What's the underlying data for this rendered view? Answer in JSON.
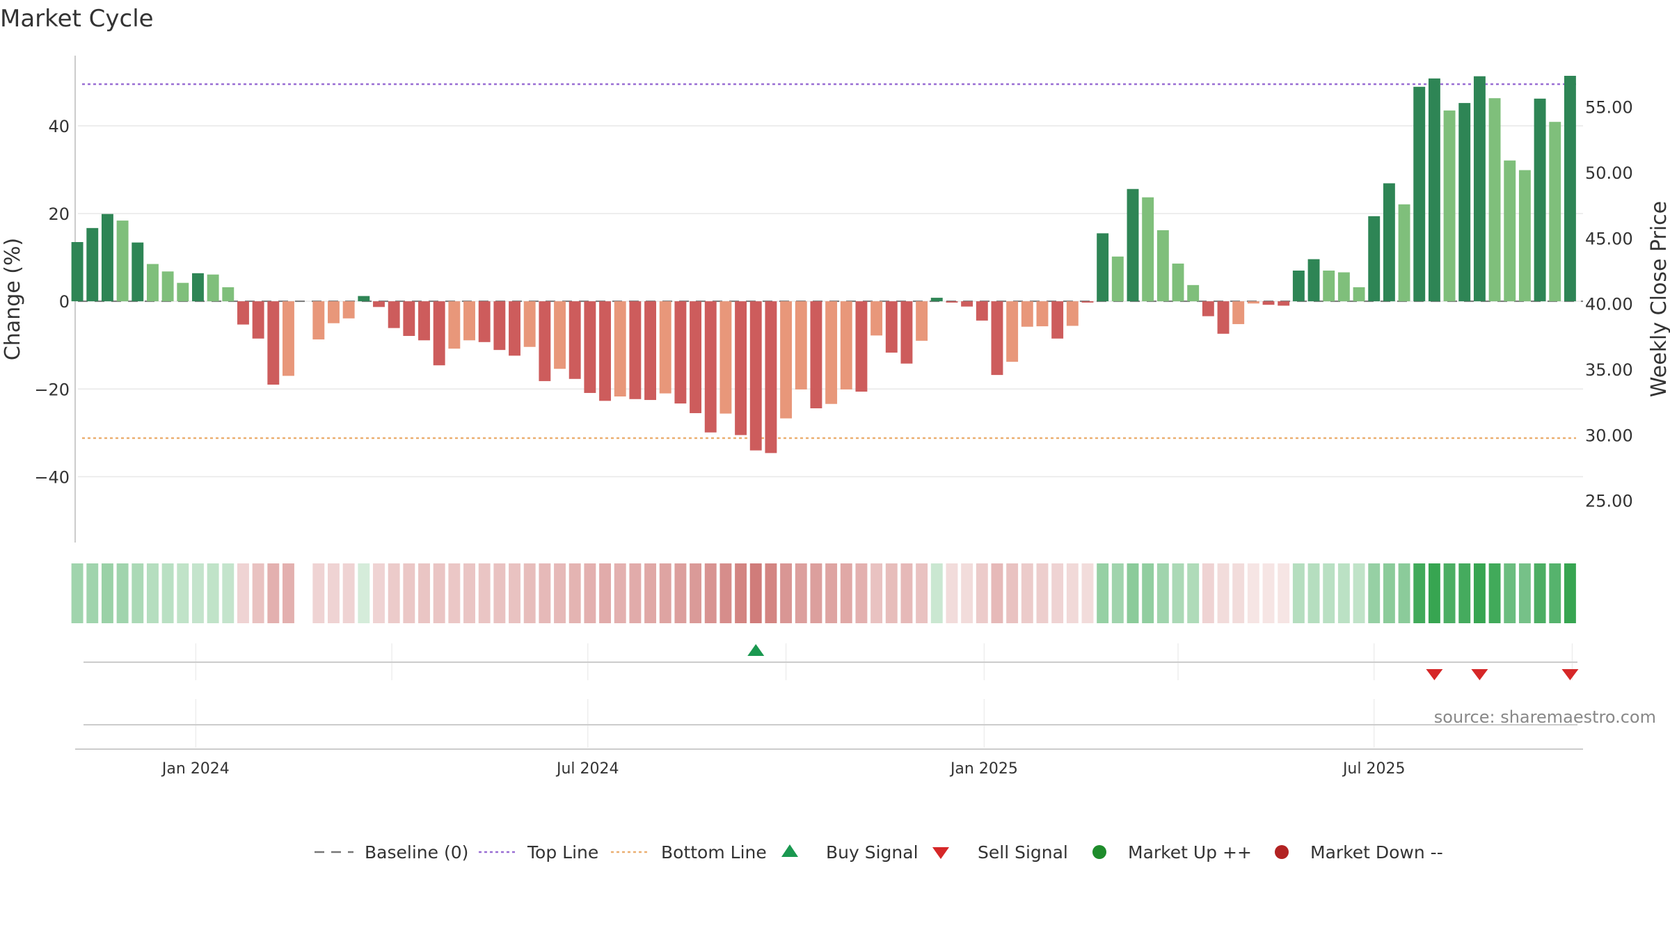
{
  "chart_data": {
    "type": "bar",
    "title": "Market Cycle",
    "ylabel": "Change (%)",
    "y2label": "Weekly Close Price",
    "ylim": [
      -55,
      56
    ],
    "y2lim": [
      21.8,
      58.9
    ],
    "yticks": [
      -40,
      -20,
      0,
      20,
      40
    ],
    "yticklabels": [
      "−40",
      "−20",
      "0",
      "20",
      "40"
    ],
    "y2ticks": [
      25,
      30,
      35,
      40,
      45,
      50,
      55
    ],
    "y2ticklabels": [
      "25.00",
      "30.00",
      "35.00",
      "40.00",
      "45.00",
      "50.00",
      "55.00"
    ],
    "x_start": "2023-11-07",
    "x_step_days": 7,
    "xlim": [
      "2023-11-06",
      "2025-10-06"
    ],
    "date_ticks": [
      {
        "date": "2024-01-01",
        "label": "Jan 2024"
      },
      {
        "date": "2024-07-01",
        "label": "Jul 2024"
      },
      {
        "date": "2025-01-01",
        "label": "Jan 2025"
      },
      {
        "date": "2025-07-01",
        "label": "Jul 2025"
      }
    ],
    "values": [
      13.5,
      16.7,
      19.9,
      18.4,
      13.4,
      8.5,
      6.8,
      4.2,
      6.4,
      6.1,
      3.2,
      -5.3,
      -8.5,
      -19.0,
      -17.0,
      null,
      -8.7,
      -5.0,
      -3.9,
      1.2,
      -1.3,
      -6.1,
      -7.9,
      -8.9,
      -14.6,
      -10.8,
      -8.9,
      -9.3,
      -11.1,
      -12.4,
      -10.4,
      -18.2,
      -15.4,
      -17.7,
      -20.9,
      -22.7,
      -21.7,
      -22.3,
      -22.5,
      -21.0,
      -23.3,
      -25.5,
      -29.9,
      -25.6,
      -30.5,
      -34.0,
      -34.6,
      -26.7,
      -20.1,
      -24.4,
      -23.4,
      -20.1,
      -20.6,
      -7.8,
      -11.7,
      -14.2,
      -9.0,
      0.8,
      -0.3,
      -1.2,
      -4.4,
      -16.8,
      -13.8,
      -5.8,
      -5.7,
      -8.5,
      -5.6,
      -0.3,
      15.5,
      10.2,
      25.6,
      23.7,
      16.2,
      8.6,
      3.7,
      -3.4,
      -7.4,
      -5.2,
      -0.5,
      -0.8,
      -1.0,
      7.0,
      9.6,
      7.0,
      6.6,
      3.2,
      19.4,
      26.9,
      22.1,
      48.9,
      50.8,
      43.5,
      45.2,
      51.3,
      46.3,
      32.1,
      29.9,
      46.2,
      40.9,
      51.4
    ],
    "bar_styles": [
      "d",
      "d",
      "d",
      "l",
      "d",
      "l",
      "l",
      "l",
      "d",
      "l",
      "l",
      "d",
      "d",
      "d",
      "l",
      "n",
      "l",
      "l",
      "l",
      "d",
      "d",
      "d",
      "d",
      "d",
      "d",
      "l",
      "l",
      "d",
      "d",
      "d",
      "l",
      "d",
      "l",
      "d",
      "d",
      "d",
      "l",
      "d",
      "d",
      "l",
      "d",
      "d",
      "d",
      "l",
      "d",
      "d",
      "d",
      "l",
      "l",
      "d",
      "l",
      "l",
      "d",
      "l",
      "d",
      "d",
      "l",
      "d",
      "d",
      "d",
      "d",
      "d",
      "l",
      "l",
      "l",
      "d",
      "l",
      "d",
      "d",
      "l",
      "d",
      "l",
      "l",
      "l",
      "l",
      "d",
      "d",
      "l",
      "l",
      "d",
      "d",
      "d",
      "d",
      "l",
      "l",
      "l",
      "d",
      "d",
      "l",
      "d",
      "d",
      "l",
      "d",
      "d",
      "l",
      "l",
      "l",
      "d",
      "l",
      "d"
    ],
    "strip_intensity": [
      0.45,
      0.45,
      0.48,
      0.45,
      0.4,
      0.35,
      0.33,
      0.3,
      0.28,
      0.3,
      0.28,
      0.25,
      0.35,
      0.45,
      0.45,
      null,
      0.25,
      0.25,
      0.25,
      0.2,
      0.25,
      0.3,
      0.32,
      0.33,
      0.33,
      0.32,
      0.33,
      0.33,
      0.35,
      0.35,
      0.38,
      0.4,
      0.4,
      0.43,
      0.45,
      0.48,
      0.45,
      0.48,
      0.5,
      0.52,
      0.55,
      0.58,
      0.62,
      0.65,
      0.7,
      0.75,
      0.7,
      0.6,
      0.55,
      0.55,
      0.52,
      0.5,
      0.45,
      0.35,
      0.38,
      0.4,
      0.35,
      0.25,
      0.2,
      0.2,
      0.3,
      0.4,
      0.35,
      0.3,
      0.28,
      0.25,
      0.22,
      0.2,
      0.5,
      0.45,
      0.55,
      0.52,
      0.45,
      0.4,
      0.38,
      0.25,
      0.2,
      0.2,
      0.15,
      0.15,
      0.15,
      0.35,
      0.35,
      0.33,
      0.32,
      0.3,
      0.5,
      0.55,
      0.55,
      0.9,
      0.95,
      0.85,
      0.88,
      0.95,
      0.9,
      0.7,
      0.65,
      0.85,
      0.8,
      0.95
    ],
    "buy_signals": [
      45
    ],
    "sell_signals": [
      90,
      93,
      99
    ],
    "reference_lines": {
      "baseline": 0,
      "top_line": 49.5,
      "bottom_line": -31.2
    },
    "grid": true,
    "legend_position": "bottom-center",
    "legend": [
      {
        "label": "Baseline (0)",
        "symbol": "dash"
      },
      {
        "label": "Top Line",
        "symbol": "dot-purple"
      },
      {
        "label": "Bottom Line",
        "symbol": "dot-orange"
      },
      {
        "label": "Buy Signal",
        "symbol": "triangle-up"
      },
      {
        "label": "Sell Signal",
        "symbol": "triangle-down"
      },
      {
        "label": "Market Up ++",
        "symbol": "circle-green"
      },
      {
        "label": "Market Down --",
        "symbol": "circle-red"
      }
    ],
    "source_note": "source: sharemaestro.com"
  },
  "colors": {
    "bar_up_dark": "#2e8555",
    "bar_up_light": "#7fbf7b",
    "bar_down_dark": "#cd5c5c",
    "bar_down_light": "#e8977a",
    "top_line": "#9a6fd4",
    "bottom_line": "#ebb072",
    "baseline": "#777777",
    "buy": "#1a9850",
    "sell": "#d62728",
    "market_up": "#1e8c2b",
    "market_down": "#b22222",
    "grid": "#e8e8e8"
  }
}
